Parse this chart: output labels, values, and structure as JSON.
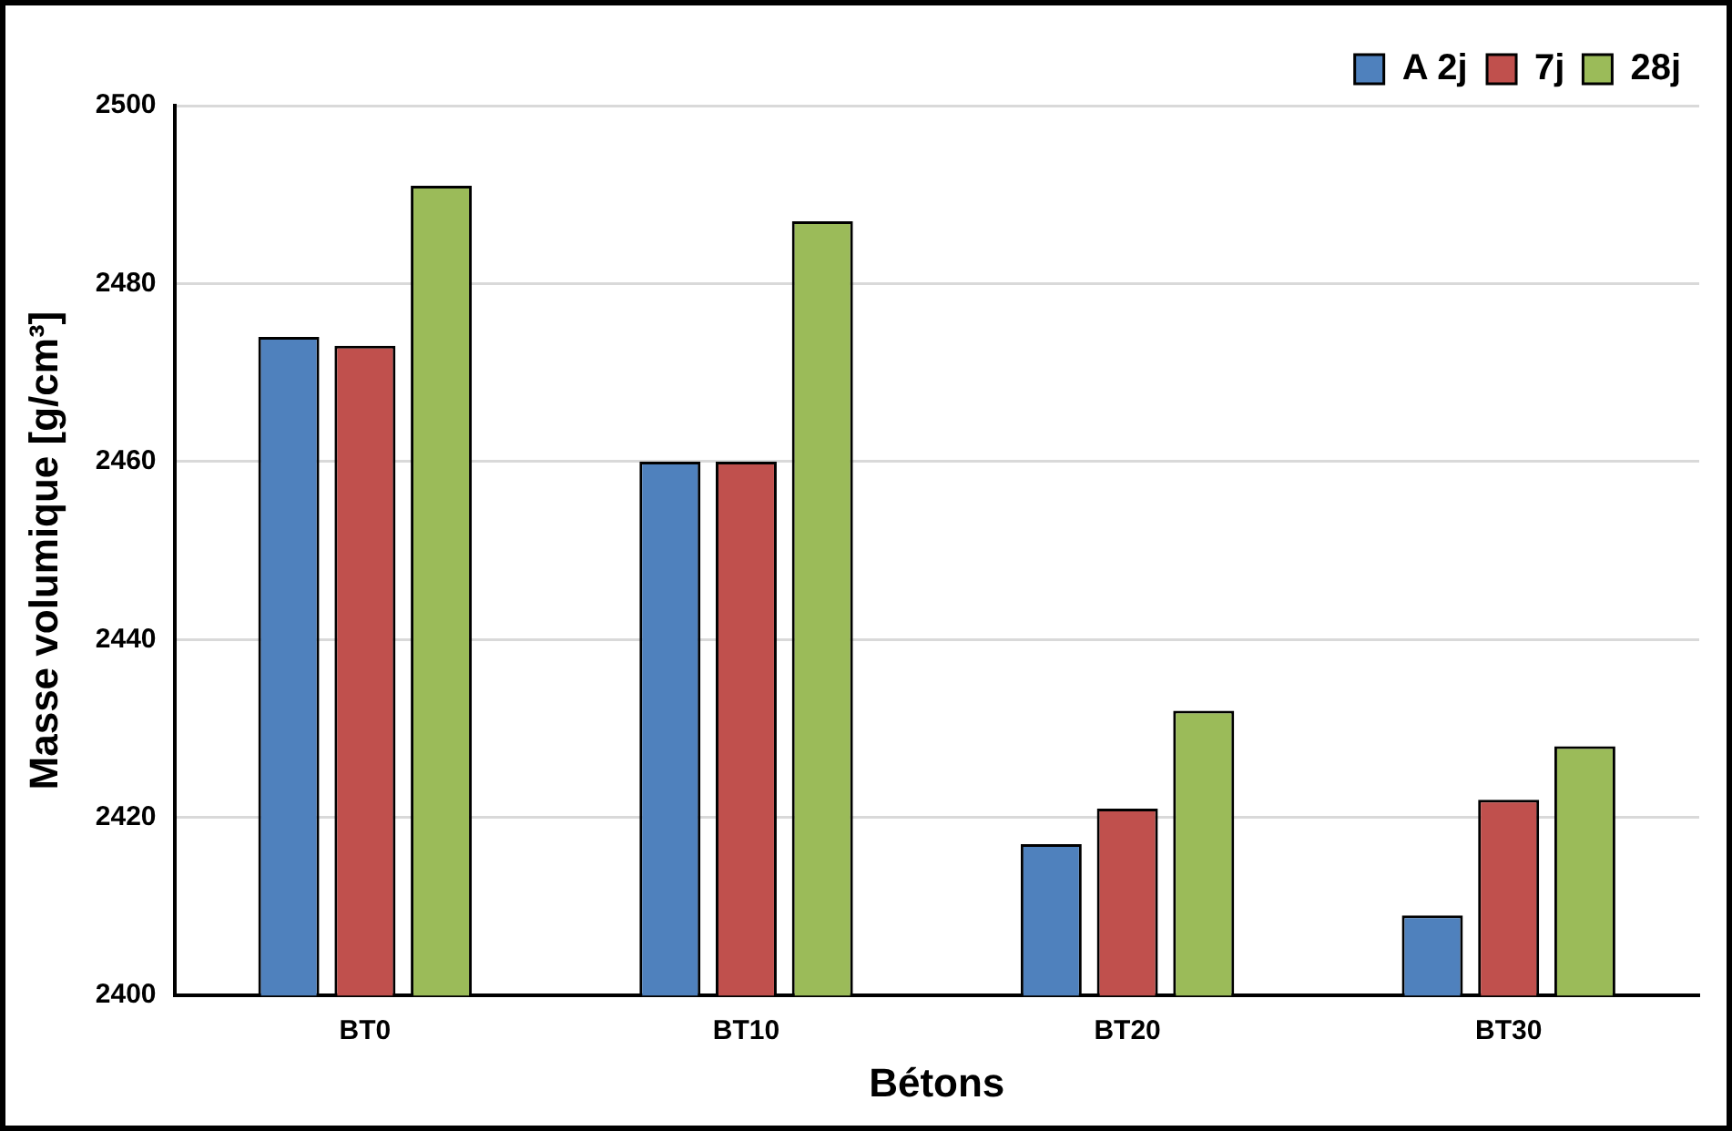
{
  "chart_data": {
    "type": "bar",
    "xlabel": "Bétons",
    "ylabel": "Masse volumique [g/cm³]",
    "categories": [
      "BT0",
      "BT10",
      "BT20",
      "BT30"
    ],
    "series": [
      {
        "name": "A 2j",
        "color": "#4f81bd",
        "values": [
          2474,
          2460,
          2417,
          2409
        ]
      },
      {
        "name": "7j",
        "color": "#c0504d",
        "values": [
          2473,
          2460,
          2421,
          2422
        ]
      },
      {
        "name": "28j",
        "color": "#9bbb59",
        "values": [
          2491,
          2487,
          2432,
          2428
        ]
      }
    ],
    "ylim": [
      2400,
      2500
    ],
    "yticks": [
      2400,
      2420,
      2440,
      2460,
      2480,
      2500
    ],
    "grid": "y",
    "legend": "top right"
  }
}
